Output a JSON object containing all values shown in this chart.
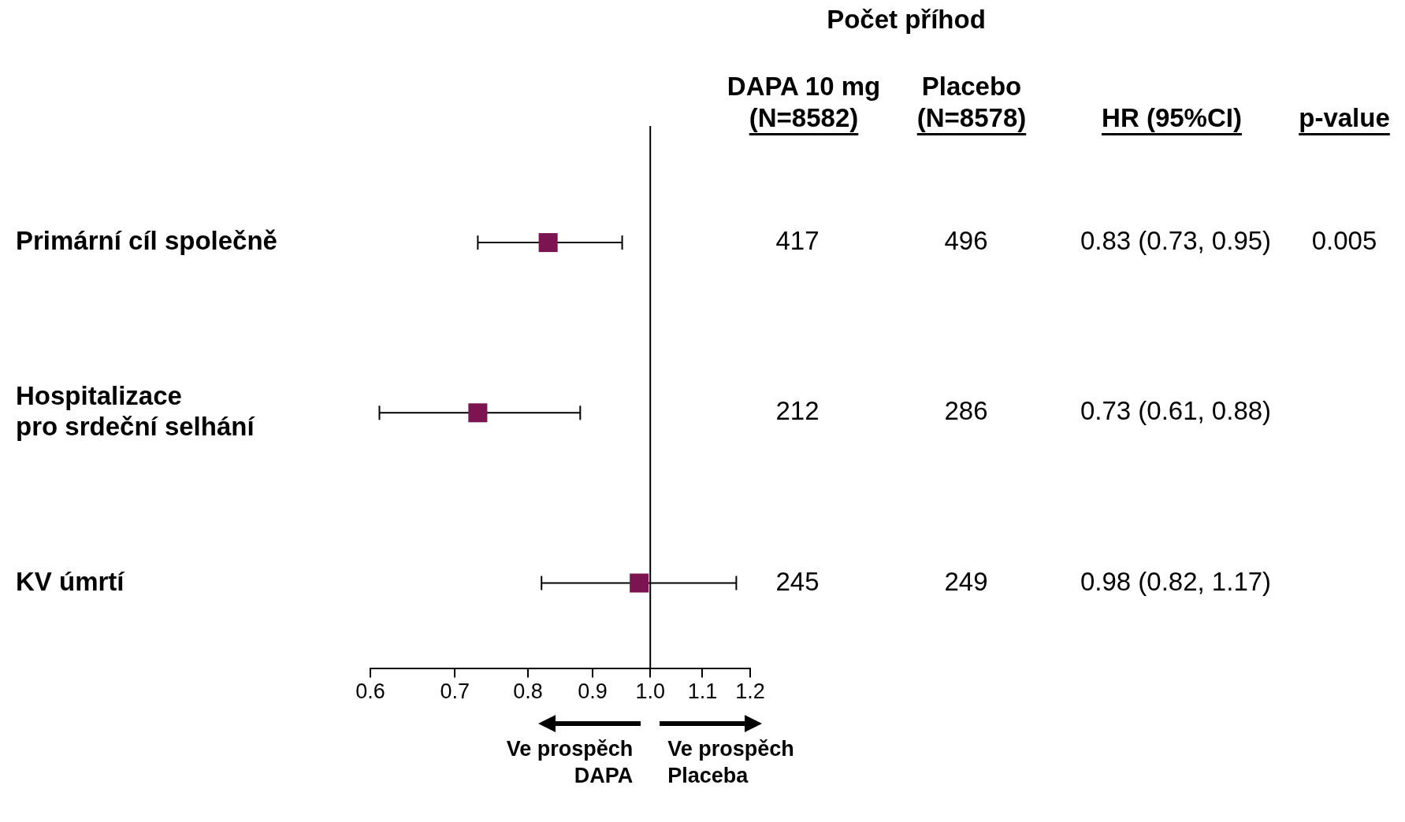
{
  "chart_data": {
    "type": "scatter",
    "orientation": "horizontal",
    "log": "x",
    "categories": [
      "Primární cíl společně",
      "Hospitalizace\npro srdeční selhání",
      "KV úmrtí"
    ],
    "values": [
      0.83,
      0.73,
      0.98
    ],
    "errors": [
      [
        0.73,
        0.95
      ],
      [
        0.61,
        0.88
      ],
      [
        0.82,
        1.17
      ]
    ],
    "value_labels": [
      "0.83 (0.73, 0.95)",
      "0.73 (0.61, 0.88)",
      "0.98 (0.82, 1.17)"
    ],
    "color": "#7b1450",
    "marker": "square",
    "xlim": [
      0.6,
      1.2
    ],
    "xticks": [
      0.6,
      0.7,
      0.8,
      0.9,
      {
        "value": 1,
        "label": "1.0"
      },
      1.1,
      1.2
    ],
    "ref_lines": [
      {
        "axis": "x",
        "value": 1,
        "color": "#000000"
      }
    ],
    "annotations": [
      "Počet příhod",
      "DAPA 10 mg\n(N=8582)",
      "Placebo\n(N=8578)",
      "HR (95%CI)",
      "p-value",
      "417",
      "212",
      "245",
      "496",
      "286",
      "249",
      "0.005",
      "Ve prospěch\nDAPA",
      "Ve prospěch\nPlaceba"
    ]
  }
}
